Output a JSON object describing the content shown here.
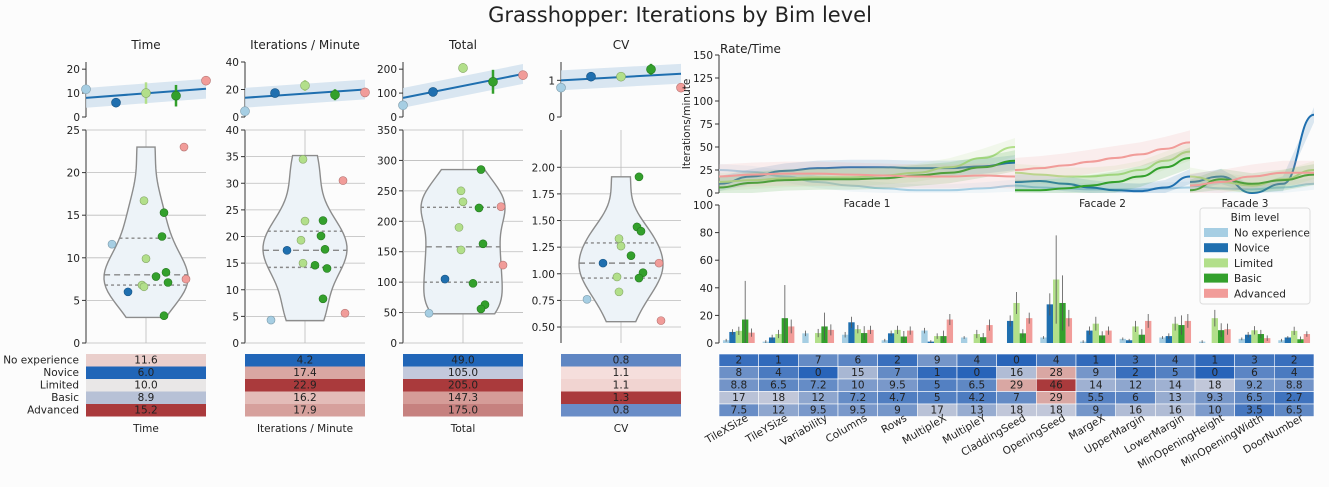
{
  "title": "Grasshopper: Iterations by Bim level",
  "levels": [
    "No experience",
    "Novice",
    "Limited",
    "Basic",
    "Advanced"
  ],
  "level_colors": [
    "#a6cee3",
    "#1f6faf",
    "#b2df8a",
    "#33a02c",
    "#f19c99"
  ],
  "chart_data": [
    {
      "type": "scatter",
      "id": "time",
      "title": "Time",
      "xlabel": "Time",
      "top_ylim": [
        0,
        23
      ],
      "top_ticks": [
        0,
        10,
        20
      ],
      "top_points": [
        11.6,
        6.0,
        10.0,
        8.9,
        15.2
      ],
      "top_errors": [
        0,
        0,
        4.5,
        4.5,
        0
      ],
      "fit": [
        8.0,
        11.8
      ],
      "ylim": [
        0,
        25
      ],
      "yticks": [
        0,
        5,
        10,
        15,
        20,
        25
      ],
      "violin_range": [
        3,
        23
      ],
      "quartiles": [
        6.8,
        8.0,
        12.3
      ],
      "points": [
        {
          "level": 0,
          "v": 11.6
        },
        {
          "level": 1,
          "v": 6.0
        },
        {
          "level": 2,
          "v": 16.7
        },
        {
          "level": 2,
          "v": 9.9
        },
        {
          "level": 2,
          "v": 6.8
        },
        {
          "level": 2,
          "v": 6.6
        },
        {
          "level": 3,
          "v": 15.3
        },
        {
          "level": 3,
          "v": 12.5
        },
        {
          "level": 3,
          "v": 8.3
        },
        {
          "level": 3,
          "v": 7.8
        },
        {
          "level": 3,
          "v": 7.1
        },
        {
          "level": 3,
          "v": 3.2
        },
        {
          "level": 4,
          "v": 23.0
        },
        {
          "level": 4,
          "v": 7.5
        }
      ],
      "table": [
        "11.6",
        "6.0",
        "10.0",
        "8.9",
        "15.2"
      ],
      "table_colors": [
        "#eacfcc",
        "#2166b8",
        "#e9e7e7",
        "#b7c1d6",
        "#aa3a3c"
      ]
    },
    {
      "type": "scatter",
      "id": "ipm",
      "title": "Iterations / Minute",
      "xlabel": "Iterations / Minute",
      "top_ylim": [
        0,
        40
      ],
      "top_ticks": [
        0,
        20,
        40
      ],
      "top_points": [
        4.2,
        17.4,
        22.9,
        16.2,
        17.9
      ],
      "top_errors": [
        0,
        0,
        4,
        4,
        0
      ],
      "fit": [
        14.0,
        20.0
      ],
      "ylim": [
        0,
        40
      ],
      "yticks": [
        0,
        5,
        10,
        15,
        20,
        25,
        30,
        35,
        40
      ],
      "violin_range": [
        4.2,
        35.2
      ],
      "quartiles": [
        14.2,
        17.4,
        21.0
      ],
      "points": [
        {
          "level": 0,
          "v": 4.3
        },
        {
          "level": 1,
          "v": 17.4
        },
        {
          "level": 2,
          "v": 34.5
        },
        {
          "level": 2,
          "v": 22.9
        },
        {
          "level": 2,
          "v": 19.3
        },
        {
          "level": 2,
          "v": 15.0
        },
        {
          "level": 3,
          "v": 23.0
        },
        {
          "level": 3,
          "v": 20.1
        },
        {
          "level": 3,
          "v": 17.6
        },
        {
          "level": 3,
          "v": 14.6
        },
        {
          "level": 3,
          "v": 14.0
        },
        {
          "level": 3,
          "v": 8.3
        },
        {
          "level": 4,
          "v": 30.5
        },
        {
          "level": 4,
          "v": 5.6
        }
      ],
      "table": [
        "4.2",
        "17.4",
        "22.9",
        "16.2",
        "17.9"
      ],
      "table_colors": [
        "#2166b8",
        "#d9a7a3",
        "#aa3a3c",
        "#e3bcb8",
        "#d6a09c"
      ]
    },
    {
      "type": "scatter",
      "id": "total",
      "title": "Total",
      "xlabel": "Total",
      "top_ylim": [
        0,
        230
      ],
      "top_ticks": [
        0,
        100,
        200
      ],
      "top_points": [
        49.0,
        105.0,
        205.0,
        147.3,
        175.0
      ],
      "top_errors": [
        0,
        0,
        20,
        50,
        0
      ],
      "fit": [
        80,
        180
      ],
      "ylim": [
        0,
        350
      ],
      "yticks": [
        0,
        50,
        100,
        150,
        200,
        250,
        300,
        350
      ],
      "violin_range": [
        48,
        285
      ],
      "quartiles": [
        100,
        158,
        223
      ],
      "points": [
        {
          "level": 0,
          "v": 49
        },
        {
          "level": 1,
          "v": 105
        },
        {
          "level": 2,
          "v": 250
        },
        {
          "level": 2,
          "v": 232
        },
        {
          "level": 2,
          "v": 190
        },
        {
          "level": 2,
          "v": 153
        },
        {
          "level": 3,
          "v": 285
        },
        {
          "level": 3,
          "v": 222
        },
        {
          "level": 3,
          "v": 163
        },
        {
          "level": 3,
          "v": 98
        },
        {
          "level": 3,
          "v": 63
        },
        {
          "level": 3,
          "v": 56
        },
        {
          "level": 4,
          "v": 224
        },
        {
          "level": 4,
          "v": 128
        }
      ],
      "table": [
        "49.0",
        "105.0",
        "205.0",
        "147.3",
        "175.0"
      ],
      "table_colors": [
        "#2166b8",
        "#c3c9dc",
        "#aa3a3c",
        "#d59c98",
        "#c6817f"
      ]
    },
    {
      "type": "scatter",
      "id": "cv",
      "title": "CV",
      "xlabel": "CV",
      "top_ylim": [
        0,
        1.5
      ],
      "top_ticks": [
        0,
        1
      ],
      "top_points": [
        0.8,
        1.1,
        1.1,
        1.3,
        0.8
      ],
      "top_errors": [
        0,
        0,
        0.12,
        0.15,
        0
      ],
      "fit": [
        1.0,
        1.18
      ],
      "ylim": [
        0.35,
        2.35
      ],
      "yticks": [
        0.5,
        0.75,
        1.0,
        1.25,
        1.5,
        1.75,
        2.0
      ],
      "ytick_labels": [
        "0.50",
        "0.75",
        "1.00",
        "1.25",
        "1.50",
        "1.75",
        "2.00"
      ],
      "violin_range": [
        0.55,
        1.91
      ],
      "quartiles": [
        0.96,
        1.1,
        1.29
      ],
      "points": [
        {
          "level": 0,
          "v": 0.76
        },
        {
          "level": 1,
          "v": 1.1
        },
        {
          "level": 2,
          "v": 1.33
        },
        {
          "level": 2,
          "v": 1.26
        },
        {
          "level": 2,
          "v": 0.97
        },
        {
          "level": 2,
          "v": 0.83
        },
        {
          "level": 3,
          "v": 1.91
        },
        {
          "level": 3,
          "v": 1.44
        },
        {
          "level": 3,
          "v": 1.4
        },
        {
          "level": 3,
          "v": 1.17
        },
        {
          "level": 3,
          "v": 1.01
        },
        {
          "level": 3,
          "v": 0.96
        },
        {
          "level": 4,
          "v": 1.1
        },
        {
          "level": 4,
          "v": 0.56
        }
      ],
      "table": [
        "0.8",
        "1.1",
        "1.1",
        "1.3",
        "0.8"
      ],
      "table_colors": [
        "#5f86c3",
        "#f5dedc",
        "#f1d4d1",
        "#aa3a3c",
        "#6a8dc7"
      ]
    },
    {
      "type": "line",
      "id": "rate",
      "title": "Rate/Time",
      "ylabel": "Iterations/minute",
      "ylim": [
        0,
        150
      ],
      "yticks": [
        0,
        25,
        50,
        75,
        100,
        125,
        150
      ],
      "panels": [
        "Facade 1",
        "Facade 2",
        "Facade 3"
      ],
      "series": [
        {
          "level": 0,
          "panels": [
            [
              25,
              23,
              18,
              12,
              8,
              5,
              3,
              3,
              5,
              8
            ],
            [
              8,
              6,
              5,
              4,
              4,
              4,
              5,
              6
            ],
            [
              8,
              5,
              4,
              6,
              10
            ]
          ]
        },
        {
          "level": 1,
          "panels": [
            [
              10,
              18,
              24,
              27,
              28,
              28,
              27,
              27,
              29,
              33
            ],
            [
              12,
              13,
              10,
              6,
              3,
              2,
              6,
              18
            ],
            [
              12,
              18,
              0,
              10,
              85
            ]
          ]
        },
        {
          "level": 2,
          "panels": [
            [
              12,
              14,
              16,
              17,
              17,
              19,
              22,
              28,
              38,
              50
            ],
            [
              22,
              20,
              18,
              18,
              20,
              25,
              35,
              45
            ],
            [
              18,
              12,
              8,
              15,
              25
            ]
          ]
        },
        {
          "level": 3,
          "panels": [
            [
              6,
              11,
              14,
              15,
              15,
              16,
              19,
              22,
              28,
              35
            ],
            [
              3,
              3,
              5,
              8,
              12,
              18,
              28,
              38
            ],
            [
              3,
              15,
              10,
              14,
              20
            ]
          ]
        },
        {
          "level": 4,
          "panels": [
            [
              18,
              20,
              21,
              21,
              20,
              19,
              18,
              18,
              19,
              18
            ],
            [
              25,
              27,
              30,
              34,
              38,
              42,
              48,
              55
            ],
            [
              8,
              12,
              18,
              22,
              22
            ]
          ]
        }
      ]
    },
    {
      "type": "bar",
      "id": "params",
      "ylim": [
        0,
        100
      ],
      "yticks": [
        0,
        20,
        40,
        60,
        80,
        100
      ],
      "legend_title": "Bim level",
      "categories": [
        "TileXSize",
        "TileYSize",
        "Variability",
        "Columns",
        "Rows",
        "MultipleX",
        "MultipleY",
        "CladdingSeed",
        "OpeningSeed",
        "MargeX",
        "UpperMargin",
        "LowerMargin",
        "MinOpeningHeight",
        "MinOpeningWidth",
        "DoorNumber"
      ],
      "series": [
        {
          "level": 0,
          "values": [
            2,
            1,
            7,
            6,
            2,
            9,
            4,
            0,
            4,
            1,
            3,
            4,
            1,
            3,
            2
          ]
        },
        {
          "level": 1,
          "values": [
            8,
            4,
            0,
            15,
            7,
            1,
            0,
            16,
            28,
            9,
            2,
            5,
            0,
            6,
            4
          ]
        },
        {
          "level": 2,
          "values": [
            8.8,
            6.5,
            7.2,
            10,
            9.5,
            5,
            6.5,
            29,
            46,
            14,
            12,
            14,
            18,
            9.2,
            8.8
          ]
        },
        {
          "level": 3,
          "values": [
            17,
            18,
            12,
            7.2,
            4.7,
            5,
            4.2,
            7,
            29,
            5.5,
            6,
            13,
            9.3,
            6.5,
            2.7
          ]
        },
        {
          "level": 4,
          "values": [
            7.5,
            12,
            9.5,
            9.5,
            9,
            17,
            13,
            18,
            18,
            9,
            16,
            16,
            10,
            3.5,
            6.5
          ]
        }
      ],
      "errors": [
        [
          1,
          1,
          2,
          2,
          1,
          2,
          1,
          0,
          1,
          1,
          1,
          1,
          1,
          1,
          1
        ],
        [
          2,
          2,
          0,
          4,
          2,
          1,
          0,
          4,
          8,
          3,
          1,
          2,
          0,
          2,
          1
        ],
        [
          3,
          3,
          3,
          3,
          3,
          2,
          3,
          8,
          32,
          5,
          4,
          5,
          6,
          3,
          3
        ],
        [
          28,
          24,
          10,
          5,
          4,
          4,
          3,
          3,
          20,
          3,
          4,
          7,
          5,
          3,
          2
        ],
        [
          3,
          5,
          4,
          3,
          3,
          4,
          4,
          4,
          6,
          3,
          5,
          5,
          4,
          2,
          2
        ]
      ],
      "table": [
        [
          "2",
          "1",
          "7",
          "6",
          "2",
          "9",
          "4",
          "0",
          "4",
          "1",
          "3",
          "4",
          "1",
          "3",
          "2"
        ],
        [
          "8",
          "4",
          "0",
          "15",
          "7",
          "1",
          "0",
          "16",
          "28",
          "9",
          "2",
          "5",
          "0",
          "6",
          "4"
        ],
        [
          "8.8",
          "6.5",
          "7.2",
          "10",
          "9.5",
          "5",
          "6.5",
          "29",
          "46",
          "14",
          "12",
          "14",
          "18",
          "9.2",
          "8.8"
        ],
        [
          "17",
          "18",
          "12",
          "7.2",
          "4.7",
          "5",
          "4.2",
          "7",
          "29",
          "5.5",
          "6",
          "13",
          "9.3",
          "6.5",
          "2.7"
        ],
        [
          "7.5",
          "12",
          "9.5",
          "9.5",
          "9",
          "17",
          "13",
          "18",
          "18",
          "9",
          "16",
          "16",
          "10",
          "3.5",
          "6.5"
        ]
      ]
    }
  ]
}
